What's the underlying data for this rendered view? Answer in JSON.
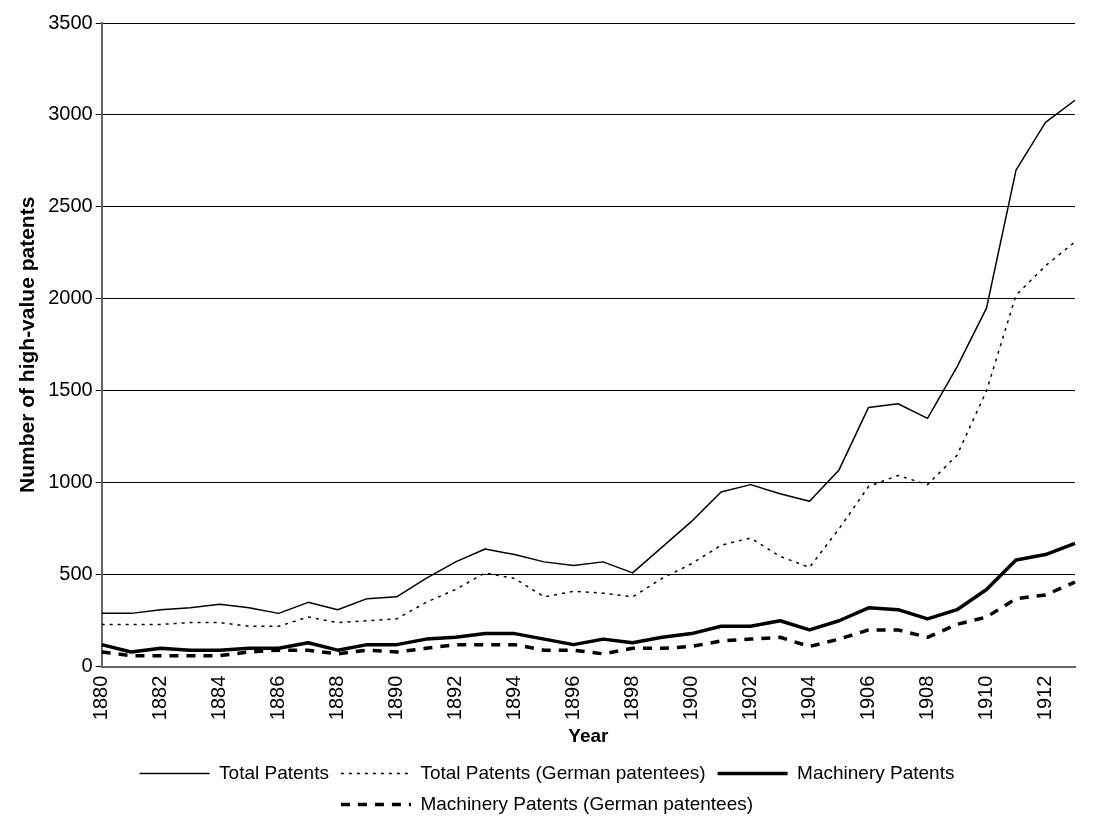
{
  "chart_data": {
    "type": "line",
    "xlabel": "Year",
    "ylabel": "Number of high-value patents",
    "categories": [
      "1880",
      null,
      "1882",
      null,
      "1884",
      null,
      "1886",
      null,
      "1888",
      null,
      "1890",
      null,
      "1892",
      null,
      "1894",
      null,
      "1896",
      null,
      "1898",
      null,
      "1900",
      null,
      "1902",
      null,
      "1904",
      null,
      "1906",
      null,
      "1908",
      null,
      "1910",
      null,
      "1912",
      null
    ],
    "series": [
      {
        "name": "Total Patents",
        "color": "#000000",
        "line_style": "solid",
        "values": [
          290,
          290,
          310,
          320,
          340,
          320,
          290,
          350,
          310,
          370,
          380,
          480,
          570,
          640,
          610,
          570,
          550,
          570,
          510,
          650,
          790,
          950,
          990,
          940,
          900,
          1070,
          1410,
          1430,
          1350,
          1630,
          1950,
          2700,
          2960,
          3080
        ]
      },
      {
        "name": "Total Patents (German patentees)",
        "color": "#000000",
        "line_style": "dotted",
        "values": [
          230,
          230,
          230,
          240,
          240,
          220,
          220,
          270,
          240,
          250,
          260,
          350,
          420,
          510,
          480,
          380,
          410,
          400,
          380,
          480,
          560,
          660,
          700,
          600,
          540,
          750,
          980,
          1040,
          990,
          1150,
          1500,
          2020,
          2180,
          2310
        ]
      },
      {
        "name": "Machinery Patents",
        "color": "#000000",
        "line_style": "solid",
        "values": [
          120,
          80,
          100,
          90,
          90,
          100,
          100,
          130,
          90,
          120,
          120,
          150,
          160,
          180,
          180,
          150,
          120,
          150,
          130,
          160,
          180,
          220,
          220,
          250,
          200,
          250,
          320,
          310,
          260,
          310,
          420,
          580,
          610,
          670
        ]
      },
      {
        "name": "Machinery Patents (German patentees)",
        "color": "#000000",
        "line_style": "dashed",
        "values": [
          80,
          60,
          60,
          60,
          60,
          80,
          90,
          90,
          70,
          90,
          80,
          100,
          120,
          120,
          120,
          90,
          90,
          70,
          100,
          100,
          110,
          140,
          150,
          160,
          110,
          150,
          200,
          200,
          160,
          230,
          270,
          370,
          390,
          460
        ]
      }
    ],
    "ylim": [
      0,
      3500
    ],
    "yticks": [
      0,
      500,
      1000,
      1500,
      2000,
      2500,
      3000,
      3500
    ],
    "grid": "y",
    "legend": "bottom",
    "marker": "none"
  }
}
